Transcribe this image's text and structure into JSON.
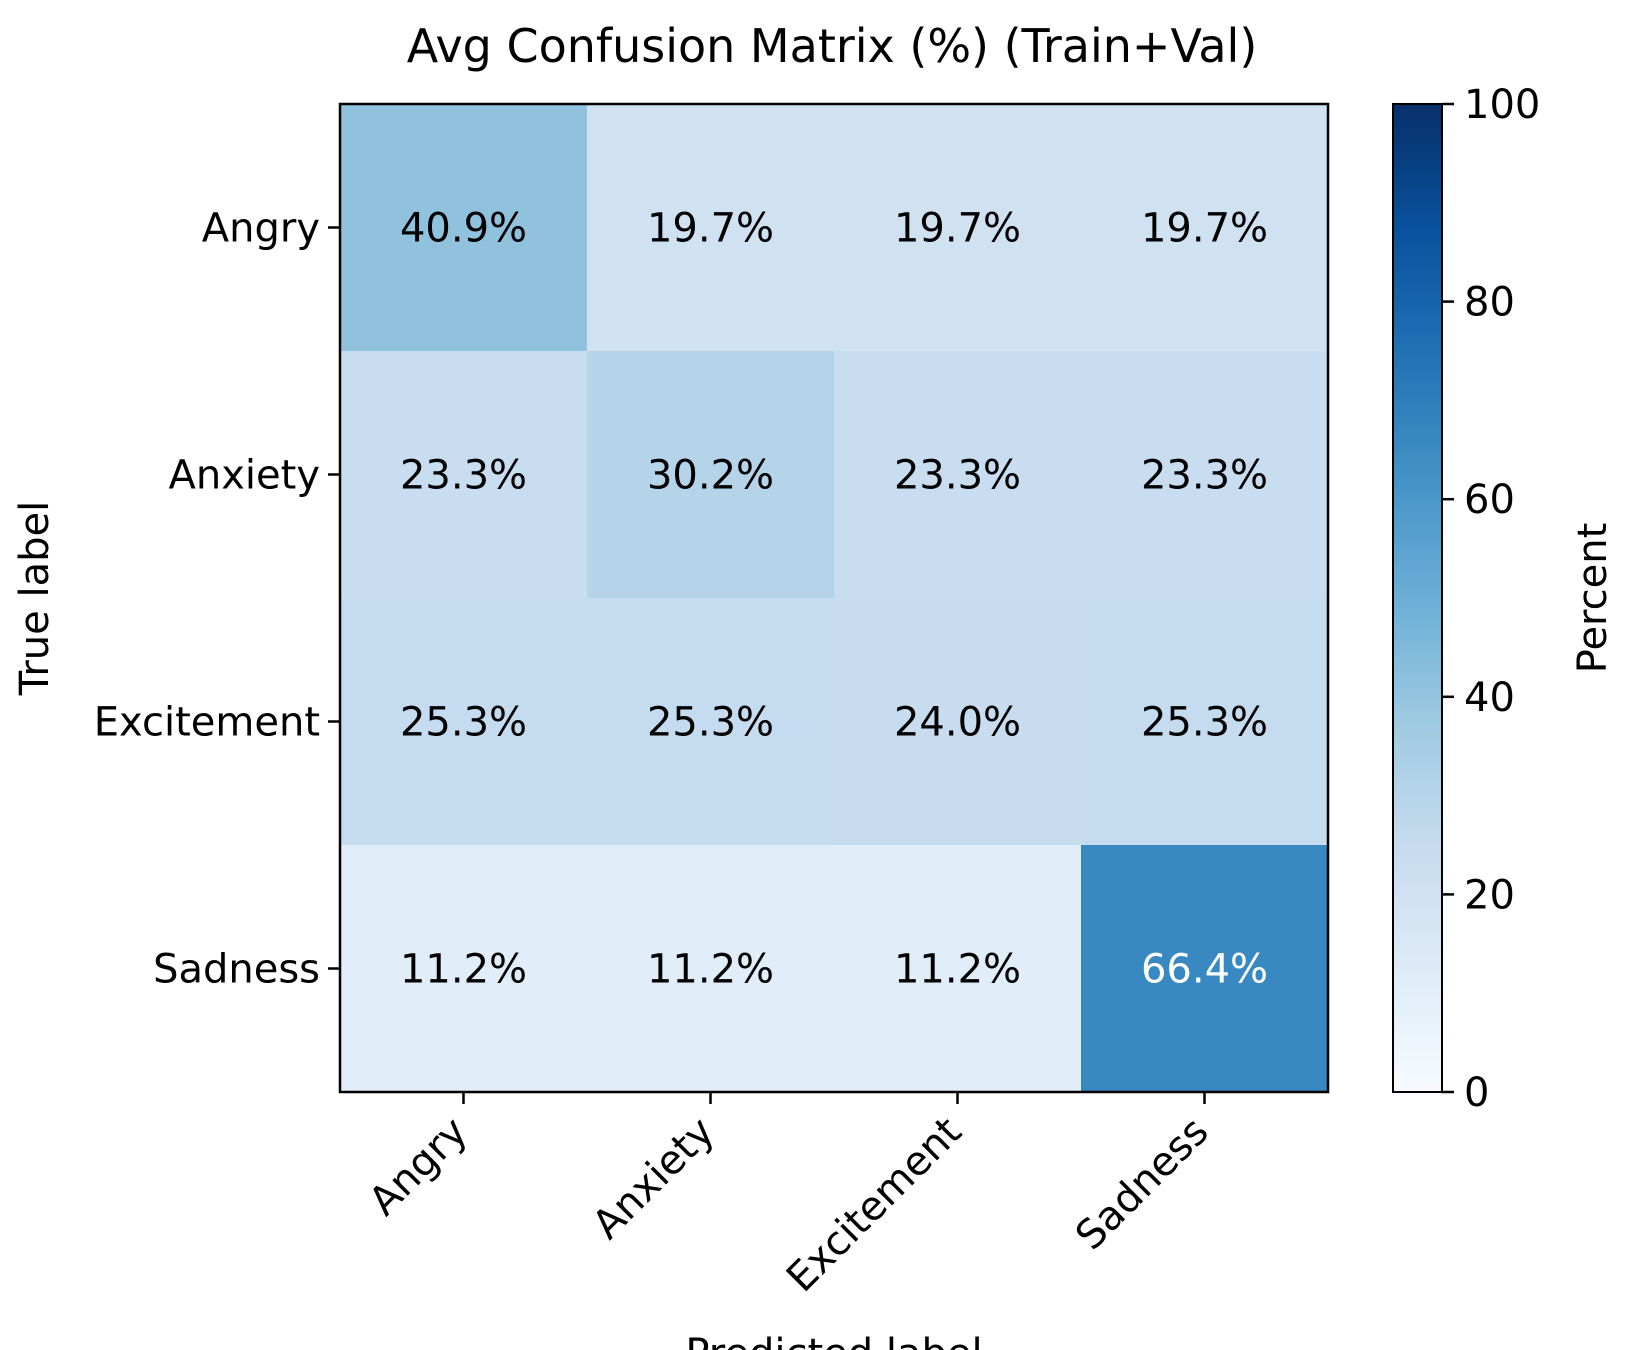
{
  "chart_data": {
    "type": "heatmap",
    "title": "Avg Confusion Matrix (%) (Train+Val)",
    "xlabel": "Predicted label",
    "ylabel": "True label",
    "x_categories": [
      "Angry",
      "Anxiety",
      "Excitement",
      "Sadness"
    ],
    "y_categories": [
      "Angry",
      "Anxiety",
      "Excitement",
      "Sadness"
    ],
    "values": [
      [
        40.9,
        19.7,
        19.7,
        19.7
      ],
      [
        23.3,
        30.2,
        23.3,
        23.3
      ],
      [
        25.3,
        25.3,
        24.0,
        25.3
      ],
      [
        11.2,
        11.2,
        11.2,
        66.4
      ]
    ],
    "value_format": "%",
    "colorbar": {
      "label": "Percent",
      "range": [
        0,
        100
      ],
      "ticks": [
        0,
        20,
        40,
        60,
        80,
        100
      ],
      "colormap": "Blues"
    }
  }
}
